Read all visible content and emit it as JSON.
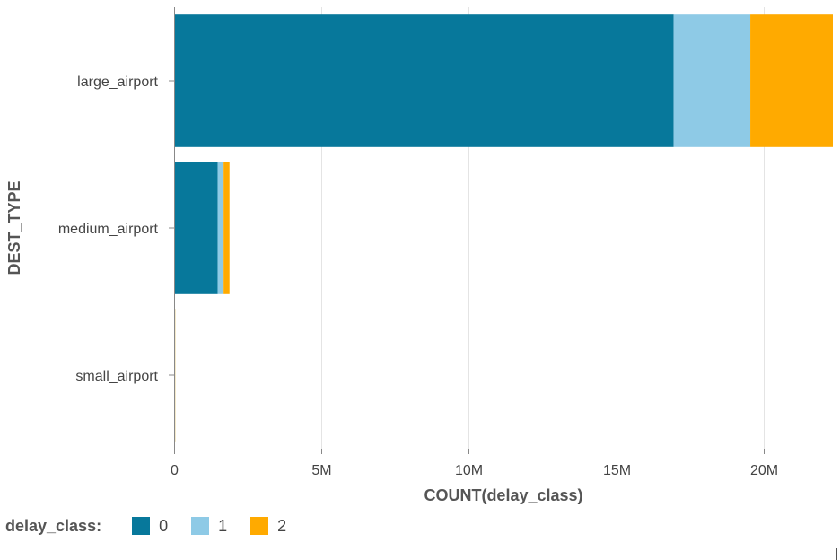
{
  "chart_data": {
    "type": "bar",
    "orientation": "horizontal",
    "stacked": true,
    "categories": [
      "large_airport",
      "medium_airport",
      "small_airport"
    ],
    "series": [
      {
        "name": "0",
        "color": "#07789b",
        "values": [
          16950000,
          1480000,
          5000
        ]
      },
      {
        "name": "1",
        "color": "#8ecae6",
        "values": [
          2600000,
          200000,
          1000
        ]
      },
      {
        "name": "2",
        "color": "#ffaa00",
        "values": [
          2800000,
          200000,
          500
        ]
      }
    ],
    "xlabel": "COUNT(delay_class)",
    "ylabel": "DEST_TYPE",
    "xlim": [
      0,
      22350000
    ],
    "x_ticks": [
      {
        "value": 0,
        "label": "0"
      },
      {
        "value": 5000000,
        "label": "5M"
      },
      {
        "value": 10000000,
        "label": "10M"
      },
      {
        "value": 15000000,
        "label": "15M"
      },
      {
        "value": 20000000,
        "label": "20M"
      }
    ],
    "grid": true,
    "legend": {
      "title": "delay_class:",
      "placement": "bottom-left"
    }
  }
}
